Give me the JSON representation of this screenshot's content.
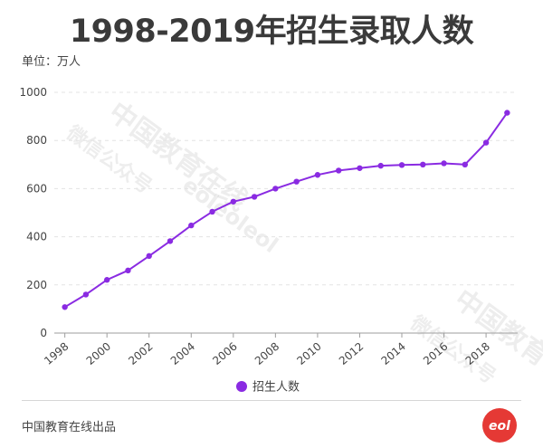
{
  "title": "1998-2019年招生录取人数",
  "unit_label": "单位：万人",
  "legend_label": "招生人数",
  "credit": "中国教育在线出品",
  "watermark": {
    "line1": "中国教育在线",
    "line2": "微信公众号",
    "line3": "eoleoleol"
  },
  "logo_text": "eol",
  "colors": {
    "series": "#8a2be2",
    "logo": "#e53935",
    "grid": "#e3e3e3",
    "axis": "#9e9e9e",
    "text": "#444444"
  },
  "chart_data": {
    "type": "line",
    "title": "1998-2019年招生录取人数",
    "ylabel": "单位：万人",
    "ylim": [
      0,
      1000
    ],
    "yticks": [
      0,
      200,
      400,
      600,
      800,
      1000
    ],
    "xticks": [
      1998,
      2000,
      2002,
      2004,
      2006,
      2008,
      2010,
      2012,
      2014,
      2016,
      2018
    ],
    "grid": "horizontal-dashed",
    "legend_position": "bottom",
    "series": [
      {
        "name": "招生人数",
        "x": [
          1998,
          1999,
          2000,
          2001,
          2002,
          2003,
          2004,
          2005,
          2006,
          2007,
          2008,
          2009,
          2010,
          2011,
          2012,
          2013,
          2014,
          2015,
          2016,
          2017,
          2018,
          2019
        ],
        "values": [
          108,
          160,
          221,
          260,
          320,
          382,
          447,
          504,
          546,
          566,
          600,
          629,
          657,
          675,
          685,
          695,
          698,
          700,
          705,
          700,
          791,
          915
        ]
      }
    ]
  }
}
